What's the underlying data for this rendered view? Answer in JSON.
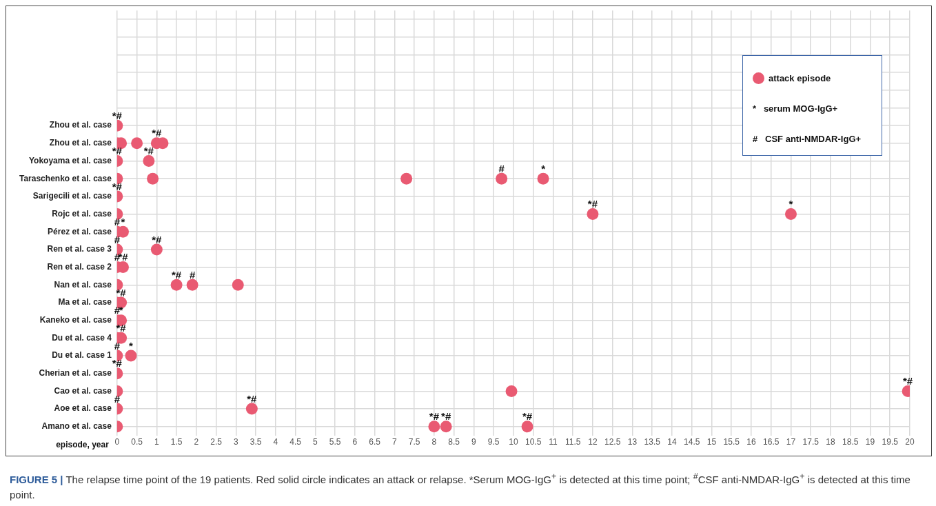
{
  "chart_data": {
    "type": "scatter",
    "orientation": "horizontal",
    "xlabel": "episode, year",
    "categories": [
      null,
      null,
      null,
      null,
      null,
      null,
      "Zhou et al. case",
      "Zhou et al. case",
      "Yokoyama et al. case",
      "Taraschenko et al. case",
      "Sarigecili et al. case",
      "Rojc et al. case",
      "Pérez et al. case",
      "Ren et al. case 3",
      "Ren et al. case 2",
      "Nan et al. case",
      "Ma et al. case",
      "Kaneko et al. case",
      "Du et al. case 4",
      "Du et al. case 1",
      "Cherian et al. case",
      "Cao et al. case",
      "Aoe et al. case",
      "Amano et al. case"
    ],
    "series": [
      {
        "name": "attack episode",
        "color": "#e95a72",
        "values": [
          null,
          null,
          null,
          null,
          null,
          null,
          0,
          0,
          0,
          0,
          0,
          0,
          0,
          0,
          0,
          0,
          0,
          0,
          0,
          0,
          0,
          0,
          0,
          0
        ],
        "value_labels": [
          null,
          null,
          null,
          null,
          null,
          null,
          "*#",
          null,
          "*#",
          null,
          "*#",
          null,
          "#",
          "#",
          "#",
          null,
          null,
          "#",
          null,
          "#",
          "*#",
          null,
          "#",
          null
        ]
      },
      {
        "color": "#e95a72",
        "values": [
          null,
          null,
          null,
          null,
          null,
          null,
          null,
          0.1,
          0.8,
          0.9,
          null,
          12,
          0.15,
          1,
          0.15,
          1.5,
          0.1,
          0.1,
          0.1,
          0.35,
          null,
          9.95,
          3.4,
          8
        ],
        "value_labels": [
          null,
          null,
          null,
          null,
          null,
          null,
          null,
          null,
          "*#",
          null,
          null,
          "*#",
          "*",
          "*#",
          "*#",
          "*#",
          "*#",
          "*",
          "*#",
          "*",
          null,
          null,
          "*#",
          "*#"
        ]
      },
      {
        "color": "#e95a72",
        "values": [
          null,
          null,
          null,
          null,
          null,
          null,
          null,
          0.5,
          null,
          7.3,
          null,
          17,
          null,
          null,
          null,
          1.9,
          null,
          null,
          null,
          null,
          null,
          19.95,
          null,
          8.3
        ],
        "value_labels": [
          null,
          null,
          null,
          null,
          null,
          null,
          null,
          null,
          null,
          null,
          null,
          "*",
          null,
          null,
          null,
          "#",
          null,
          null,
          null,
          null,
          null,
          "*#",
          null,
          "*#"
        ]
      },
      {
        "color": "#e95a72",
        "values": [
          null,
          null,
          null,
          null,
          null,
          null,
          null,
          1,
          null,
          9.7,
          null,
          null,
          null,
          null,
          null,
          3.05,
          null,
          null,
          null,
          null,
          null,
          null,
          null,
          10.35
        ],
        "value_labels": [
          null,
          null,
          null,
          null,
          null,
          null,
          null,
          "*#",
          null,
          "#",
          null,
          null,
          null,
          null,
          null,
          null,
          null,
          null,
          null,
          null,
          null,
          null,
          null,
          "*#"
        ]
      },
      {
        "color": "#e95a72",
        "values": [
          null,
          null,
          null,
          null,
          null,
          null,
          null,
          1.15,
          null,
          10.75,
          null,
          null,
          null,
          null,
          null,
          null,
          null,
          null,
          null,
          null,
          null,
          null,
          null,
          null
        ],
        "value_labels": [
          null,
          null,
          null,
          null,
          null,
          null,
          null,
          null,
          null,
          "*",
          null,
          null,
          null,
          null,
          null,
          null,
          null,
          null,
          null,
          null,
          null,
          null,
          null,
          null
        ]
      }
    ],
    "xlim": [
      0,
      20
    ],
    "xticks": [
      0,
      0.5,
      1,
      1.5,
      2,
      2.5,
      3,
      3.5,
      4,
      4.5,
      5,
      5.5,
      6,
      6.5,
      7,
      7.5,
      8,
      8.5,
      9,
      9.5,
      10,
      10.5,
      11,
      11.5,
      12,
      12.5,
      13,
      13.5,
      14,
      14.5,
      15,
      15.5,
      16,
      16.5,
      17,
      17.5,
      18,
      18.5,
      19,
      19.5,
      20
    ],
    "grid": true,
    "legend": "top right",
    "marker": "circle",
    "annotations": [
      "* serum MOG-IgG+",
      "# CSF anti-NMDAR-IgG+",
      "FIGURE 5 |",
      "The relapse time point of the 19 patients. Red solid circle indicates an attack or relapse. *Serum MOG-IgG$^{+}$ is detected at this time point; $^{#}$CSF anti-NMDAR-IgG$^{+}$ is detected at this time point."
    ]
  }
}
